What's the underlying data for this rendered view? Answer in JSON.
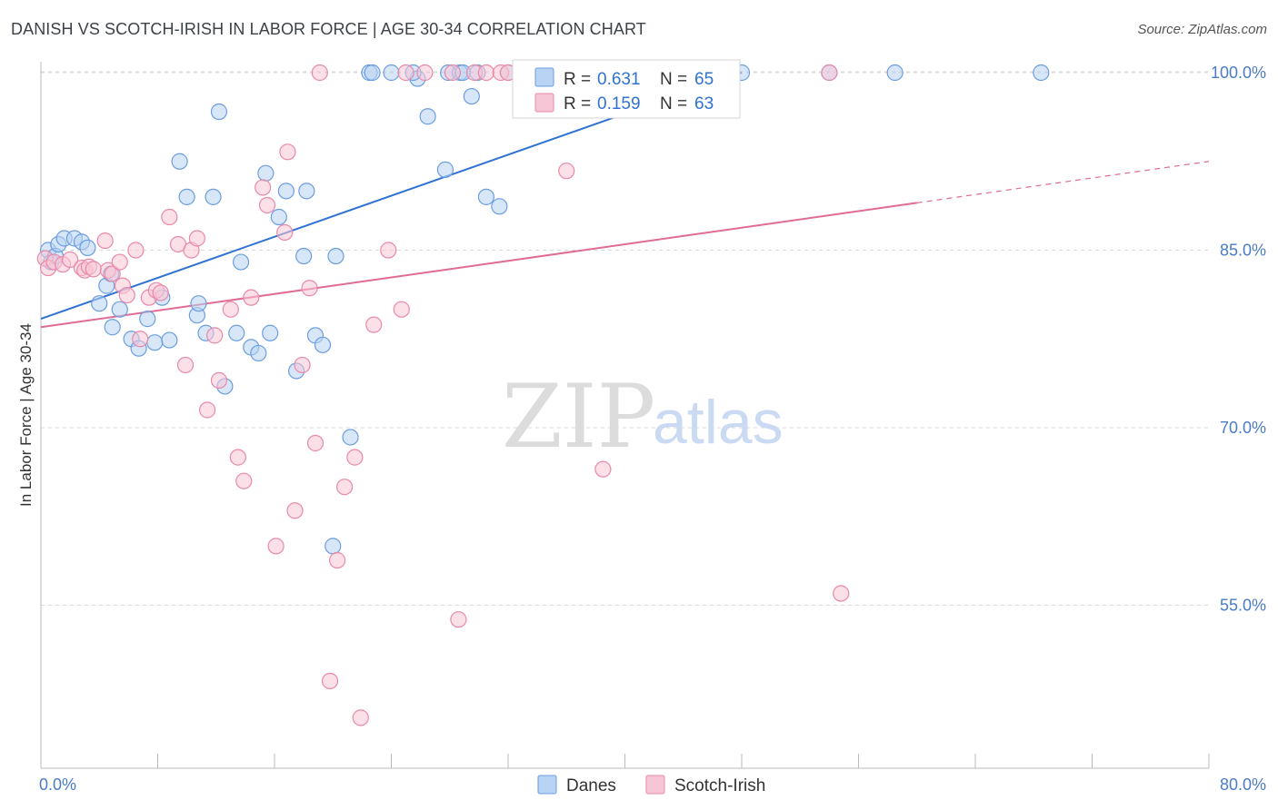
{
  "title": "DANISH VS SCOTCH-IRISH IN LABOR FORCE | AGE 30-34 CORRELATION CHART",
  "source": "Source: ZipAtlas.com",
  "watermark": {
    "zip": "ZIP",
    "atlas": "atlas"
  },
  "colors": {
    "danes_fill": "#b8d3f3",
    "danes_stroke": "#6b9de0",
    "danes_line": "#2f72d2",
    "scotch_fill": "#f7c6d6",
    "scotch_stroke": "#e889a8",
    "scotch_line": "#e06b95",
    "value_text": "#2f72d2",
    "grid": "#d8d8d8"
  },
  "legend_box": [
    {
      "r_label": "R = ",
      "r_value": "0.631",
      "n_label": "N = ",
      "n_value": "65"
    },
    {
      "r_label": "R = ",
      "r_value": "0.159",
      "n_label": "N = ",
      "n_value": "63"
    }
  ],
  "chart_data": {
    "type": "scatter",
    "title": "DANISH VS SCOTCH-IRISH IN LABOR FORCE | AGE 30-34 CORRELATION CHART",
    "xlabel": "",
    "ylabel": "In Labor Force | Age 30-34",
    "xlim": [
      0,
      80
    ],
    "ylim": [
      42,
      100
    ],
    "x_ticks": [
      0,
      80
    ],
    "x_tick_labels": [
      "0.0%",
      "80.0%"
    ],
    "y_ticks": [
      55,
      70,
      85,
      100
    ],
    "y_tick_labels": [
      "55.0%",
      "70.0%",
      "85.0%",
      "100.0%"
    ],
    "grid": true,
    "legend_position": "bottom",
    "series": [
      {
        "name": "Danes",
        "r": 0.631,
        "n": 65,
        "trend": {
          "x": [
            0,
            48
          ],
          "y": [
            79.2,
            100
          ]
        },
        "points": [
          [
            0.5,
            85
          ],
          [
            0.7,
            84
          ],
          [
            1.0,
            84.5
          ],
          [
            1.2,
            85.5
          ],
          [
            1.6,
            86
          ],
          [
            2.3,
            86
          ],
          [
            2.8,
            85.7
          ],
          [
            3.2,
            85.2
          ],
          [
            4.0,
            80.5
          ],
          [
            4.5,
            82
          ],
          [
            4.8,
            83
          ],
          [
            4.9,
            78.5
          ],
          [
            5.4,
            80
          ],
          [
            6.2,
            77.5
          ],
          [
            6.7,
            76.7
          ],
          [
            7.3,
            79.2
          ],
          [
            7.8,
            77.2
          ],
          [
            8.3,
            81
          ],
          [
            8.8,
            77.4
          ],
          [
            9.5,
            92.5
          ],
          [
            10.0,
            89.5
          ],
          [
            10.7,
            79.5
          ],
          [
            10.8,
            80.5
          ],
          [
            11.3,
            78
          ],
          [
            11.8,
            89.5
          ],
          [
            12.2,
            96.7
          ],
          [
            12.6,
            73.5
          ],
          [
            13.4,
            78
          ],
          [
            13.7,
            84
          ],
          [
            14.4,
            76.8
          ],
          [
            14.9,
            76.3
          ],
          [
            15.4,
            91.5
          ],
          [
            15.7,
            78
          ],
          [
            16.3,
            87.8
          ],
          [
            16.8,
            90
          ],
          [
            17.5,
            74.8
          ],
          [
            18.0,
            84.5
          ],
          [
            18.2,
            90
          ],
          [
            18.8,
            77.8
          ],
          [
            19.3,
            77
          ],
          [
            20.0,
            60
          ],
          [
            20.2,
            84.5
          ],
          [
            21.2,
            69.2
          ],
          [
            22.5,
            100
          ],
          [
            22.7,
            100
          ],
          [
            24.0,
            100
          ],
          [
            25.8,
            99.5
          ],
          [
            26.5,
            96.3
          ],
          [
            27.7,
            91.8
          ],
          [
            27.9,
            100
          ],
          [
            28.7,
            100
          ],
          [
            28.9,
            100
          ],
          [
            29.5,
            98
          ],
          [
            29.9,
            100
          ],
          [
            30.5,
            89.5
          ],
          [
            31.4,
            88.7
          ],
          [
            32.0,
            100
          ],
          [
            35.5,
            100
          ],
          [
            36.0,
            100
          ],
          [
            37.0,
            100
          ],
          [
            48.0,
            100
          ],
          [
            54.0,
            100
          ],
          [
            58.5,
            100
          ],
          [
            68.5,
            100
          ],
          [
            25.5,
            100
          ]
        ]
      },
      {
        "name": "Scotch-Irish",
        "r": 0.159,
        "n": 63,
        "trend": {
          "x": [
            0,
            80
          ],
          "y": [
            78.5,
            92.5
          ]
        },
        "points": [
          [
            0.3,
            84.3
          ],
          [
            0.5,
            83.5
          ],
          [
            0.9,
            84
          ],
          [
            1.5,
            83.8
          ],
          [
            2.0,
            84.2
          ],
          [
            2.8,
            83.5
          ],
          [
            3.0,
            83.3
          ],
          [
            3.3,
            83.6
          ],
          [
            3.6,
            83.4
          ],
          [
            4.4,
            85.8
          ],
          [
            4.6,
            83.3
          ],
          [
            4.9,
            83
          ],
          [
            5.4,
            84
          ],
          [
            5.6,
            82
          ],
          [
            5.9,
            81.2
          ],
          [
            6.5,
            85
          ],
          [
            6.8,
            77.5
          ],
          [
            7.4,
            81
          ],
          [
            7.9,
            81.6
          ],
          [
            8.2,
            81.4
          ],
          [
            8.8,
            87.8
          ],
          [
            9.4,
            85.5
          ],
          [
            9.9,
            75.3
          ],
          [
            10.3,
            85
          ],
          [
            10.7,
            86
          ],
          [
            11.4,
            71.5
          ],
          [
            11.9,
            77.8
          ],
          [
            12.2,
            74
          ],
          [
            13.0,
            80
          ],
          [
            13.5,
            67.5
          ],
          [
            13.9,
            65.5
          ],
          [
            14.4,
            81
          ],
          [
            15.2,
            90.3
          ],
          [
            15.5,
            88.8
          ],
          [
            16.1,
            60
          ],
          [
            16.7,
            86.5
          ],
          [
            16.9,
            93.3
          ],
          [
            17.4,
            63
          ],
          [
            17.9,
            75.3
          ],
          [
            18.4,
            81.8
          ],
          [
            18.8,
            68.7
          ],
          [
            19.1,
            100
          ],
          [
            19.8,
            48.6
          ],
          [
            20.3,
            58.8
          ],
          [
            20.8,
            65
          ],
          [
            21.5,
            67.5
          ],
          [
            21.9,
            45.5
          ],
          [
            22.8,
            78.7
          ],
          [
            23.8,
            85
          ],
          [
            24.7,
            80
          ],
          [
            25.0,
            100
          ],
          [
            26.3,
            100
          ],
          [
            28.2,
            100
          ],
          [
            28.6,
            53.8
          ],
          [
            29.7,
            100
          ],
          [
            30.5,
            100
          ],
          [
            31.5,
            100
          ],
          [
            32.0,
            100
          ],
          [
            36.0,
            91.7
          ],
          [
            38.5,
            66.5
          ],
          [
            44.5,
            100
          ],
          [
            54.0,
            100
          ],
          [
            54.8,
            56
          ]
        ]
      }
    ]
  }
}
